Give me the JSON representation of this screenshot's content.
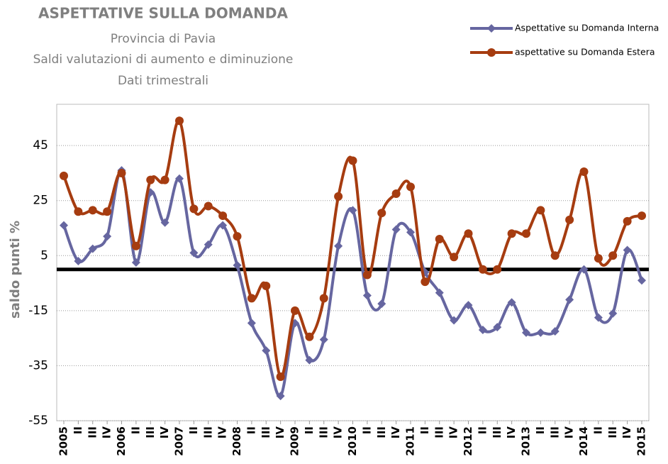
{
  "chart_data": {
    "type": "line",
    "title": "ASPETTATIVE SULLA DOMANDA",
    "subtitle": [
      "Provincia di Pavia",
      "Saldi valutazioni di aumento e diminuzione",
      "Dati trimestrali"
    ],
    "y_label": "saldo punti %",
    "categories": [
      "2005",
      "II",
      "III",
      "IV",
      "2006",
      "II",
      "III",
      "IV",
      "2007",
      "II",
      "III",
      "IV",
      "2008",
      "II",
      "III",
      "IV",
      "2009",
      "II",
      "III",
      "IV",
      "2010",
      "II",
      "III",
      "IV",
      "2011",
      "II",
      "III",
      "IV",
      "2012",
      "II",
      "III",
      "IV",
      "2013",
      "II",
      "III",
      "IV",
      "2014",
      "II",
      "III",
      "IV",
      "2015"
    ],
    "series": [
      {
        "name": "Aspettative su Domanda Interna",
        "color": "#6666a0",
        "marker": "diamond",
        "values": [
          16,
          3,
          7.5,
          12,
          36,
          2.5,
          28,
          17,
          33,
          6,
          9,
          16,
          1.5,
          -19.5,
          -29.5,
          -46,
          -19.5,
          -33,
          -25.5,
          8.5,
          21.5,
          -9.5,
          -12.5,
          14.5,
          13.5,
          -1,
          -8.5,
          -18.5,
          -13,
          -22,
          -21,
          -12,
          -23,
          -23,
          -22.5,
          -11,
          0,
          -17.5,
          -16,
          7,
          -4
        ]
      },
      {
        "name": "aspettative su Domanda Estera",
        "color": "#a63c10",
        "marker": "circle",
        "values": [
          34,
          21,
          21.5,
          21,
          35,
          8.5,
          32.5,
          32.5,
          54,
          22,
          23,
          19.5,
          12,
          -10.5,
          -6,
          -39,
          -15,
          -24.5,
          -10.5,
          26.5,
          39.5,
          -2,
          20.5,
          27.5,
          30,
          -4.5,
          11,
          4.5,
          13,
          0,
          0,
          13,
          13,
          21.5,
          5,
          18,
          35.5,
          4,
          5,
          17.5,
          19.5
        ]
      }
    ],
    "hline": 0,
    "ylim": [
      -55,
      60
    ],
    "yticks": [
      -55,
      -35,
      -15,
      5,
      25,
      45
    ],
    "grid": true,
    "legend": "top-right"
  }
}
